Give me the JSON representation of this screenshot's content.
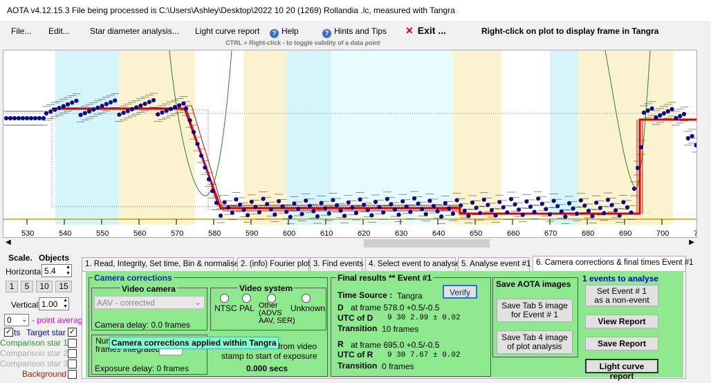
{
  "window": {
    "title": "AOTA v4.12.15.3    File being processed is C:\\Users\\Ashley\\Desktop\\2022 10 20 (1269) Rollandia .lc, measured with Tangra"
  },
  "menu": {
    "file": "File...",
    "edit": "Edit...",
    "star_diameter": "Star diameter analysis...",
    "light_curve": "Light curve report",
    "help": "Help",
    "hints": "Hints and Tips",
    "exit": "Exit ...",
    "right_click_note": "Right-click on plot to display frame in Tangra",
    "ctrl_hint": "CTRL + Right-click   -  to toggle validity of a data point"
  },
  "plot": {
    "x_ticks": [
      "530",
      "540",
      "550",
      "560",
      "570",
      "580",
      "590",
      "600",
      "610",
      "620",
      "630",
      "640",
      "650",
      "660",
      "670",
      "680",
      "690",
      "700",
      "7"
    ]
  },
  "left_panel": {
    "scale_title": "Scale.",
    "objects_title": "Objects",
    "horizontal_label": "Horizontal",
    "horizontal_value": "5.4",
    "zoom_buttons": [
      "1",
      "5",
      "10",
      "15"
    ],
    "vertical_label": "Vertical",
    "vertical_value": "1.00",
    "point_avg_value": "0",
    "point_avg_label": "- point average",
    "plot_points_label": "ts",
    "target_star": "Target star",
    "comparison1": "Comparison star 1",
    "comparison2": "Comparison star 2",
    "comparison3": "Comparison star 3",
    "background": "Background"
  },
  "tabs": [
    "1. Read, Integrity, Set time, Bin & normalise",
    "2. (info)  Fourier plot",
    "3. Find events",
    "4. Select event to analyse",
    "5. Analyse event #1",
    "6. Camera corrections & final times Event #1"
  ],
  "camera": {
    "section_title": "Camera corrections",
    "video_camera_title": "Video camera",
    "camera_select": "AAV - corrected",
    "camera_delay": "Camera delay: 0.0 frames",
    "video_system_title": "Video system",
    "ntsc": "NTSC",
    "pal": "PAL",
    "other": "Other\n(ADVS\nAAV, SER)",
    "unknown": "Unknown",
    "num_frames_label": "Num\nframes integrated",
    "tooltip": "Camera corrections applied within Tangra",
    "from_video": "from video",
    "stamp_text": "stamp to start of exposure",
    "offset_secs": "0.000 secs",
    "exposure_delay": "Exposure delay: 0 frames"
  },
  "final": {
    "title": "Final results  **  Event #1",
    "verify": "Verify",
    "time_source_label": "Time Source :",
    "time_source_value": "Tangra",
    "d_label": "D",
    "d_frame": "at frame 578.0  +0.5/-0.5",
    "utc_d_label": "UTC of D",
    "utc_d_value": "9  30   2.99  ± 0.02",
    "transition_d": "Transition",
    "transition_d_value": "10 frames",
    "r_label": "R",
    "r_frame": "at frame 695.0  +0.5/-0.5",
    "utc_r_label": "UTC of R",
    "utc_r_value": "9  30   7.67  ± 0.02",
    "transition_r": "Transition",
    "transition_r_value": "0 frames"
  },
  "save": {
    "title": "Save AOTA images",
    "tab5": "Save Tab 5 image\nfor Event # 1",
    "tab4": "Save Tab 4 image\nof plot analysis"
  },
  "events": {
    "title": "1  events to analyse",
    "set_non_event": "Set Event # 1\nas a non-event",
    "view_report": "View Report",
    "save_report": "Save Report",
    "light_curve_report": "Light curve report"
  }
}
